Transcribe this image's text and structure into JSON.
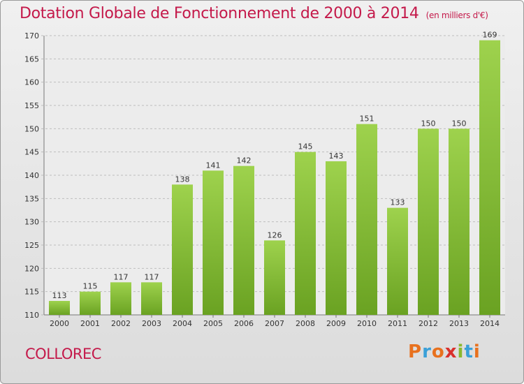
{
  "chart_data": {
    "type": "bar",
    "title": "Dotation Globale de Fonctionnement de 2000 à 2014",
    "subtitle": "(en milliers d'€)",
    "categories": [
      "2000",
      "2001",
      "2002",
      "2003",
      "2004",
      "2005",
      "2006",
      "2007",
      "2008",
      "2009",
      "2010",
      "2011",
      "2012",
      "2013",
      "2014"
    ],
    "values": [
      113,
      115,
      117,
      117,
      138,
      141,
      142,
      126,
      145,
      143,
      151,
      133,
      150,
      150,
      169
    ],
    "ylim": [
      110,
      170
    ],
    "yticks": [
      110,
      115,
      120,
      125,
      130,
      135,
      140,
      145,
      150,
      155,
      160,
      165,
      170
    ],
    "grid": true,
    "colors": {
      "bar": "#8cc63f",
      "bar_dark": "#6aa222",
      "grid": "#bdbdbd",
      "accent": "#c4194a"
    }
  },
  "footer": {
    "commune": "COLLOREC",
    "logo_letters": [
      "P",
      "r",
      "o",
      "x",
      "i",
      "t",
      "i"
    ],
    "logo_colors": [
      "#e8711e",
      "#3aa0d8",
      "#e8711e",
      "#d9302c",
      "#8ab82e",
      "#3aa0d8",
      "#e8711e"
    ]
  }
}
